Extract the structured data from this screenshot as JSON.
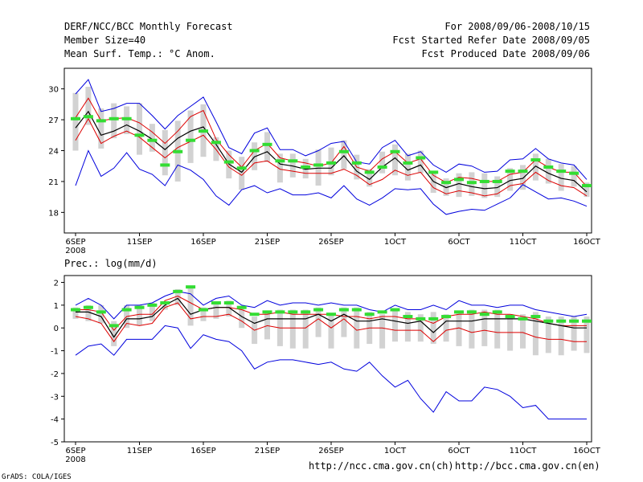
{
  "header": {
    "title": "DERF/NCC/BCC Monthly Forecast",
    "member_size": "Member Size=40",
    "variable": "Mean Surf. Temp.: °C Anom.",
    "period": "For 2008/09/06-2008/10/15",
    "started": "Fcst Started Refer Date 2008/09/05",
    "produced": "Fcst Produced Date 2008/09/06"
  },
  "colors": {
    "max_min": "#0000dd",
    "spread": "#dd0000",
    "mean": "#000000",
    "box": "#d2d2d2",
    "median": "#33dd33"
  },
  "footer": {
    "ncc_url": "http://ncc.cma.gov.cn(ch)",
    "bcc_url": "http://bcc.cma.gov.cn(en)",
    "grads": "GrADS: COLA/IGES"
  },
  "chart_data": [
    {
      "type": "line",
      "title": "Mean Surf. Temp.: °C Anom.",
      "xlabel": "",
      "ylabel": "",
      "ylim": [
        16,
        32
      ],
      "yticks": [
        18,
        21,
        24,
        27,
        30
      ],
      "xticks": [
        {
          "day": 0,
          "label": "6SEP",
          "sub": "2008"
        },
        {
          "day": 5,
          "label": "11SEP"
        },
        {
          "day": 10,
          "label": "16SEP"
        },
        {
          "day": 15,
          "label": "21SEP"
        },
        {
          "day": 20,
          "label": "26SEP"
        },
        {
          "day": 25,
          "label": "1OCT"
        },
        {
          "day": 30,
          "label": "6OCT"
        },
        {
          "day": 35,
          "label": "11OCT"
        },
        {
          "day": 40,
          "label": "16OCT"
        }
      ],
      "series": [
        {
          "name": "max",
          "color": "#0000dd",
          "values": [
            29.5,
            30.9,
            27.8,
            28.1,
            28.6,
            28.6,
            27.4,
            26.1,
            27.4,
            28.3,
            29.2,
            26.8,
            24.3,
            23.7,
            25.7,
            26.2,
            24.1,
            24.1,
            23.5,
            24.0,
            24.7,
            24.9,
            22.9,
            22.7,
            24.3,
            25.0,
            23.5,
            23.9,
            22.6,
            21.9,
            22.7,
            22.5,
            21.9,
            22.0,
            23.1,
            23.2,
            24.2,
            23.2,
            22.8,
            22.6,
            21.2
          ]
        },
        {
          "name": "upper",
          "color": "#dd0000",
          "values": [
            27.2,
            29.1,
            26.9,
            27.1,
            27.2,
            26.7,
            25.8,
            24.7,
            25.9,
            27.3,
            27.9,
            25.1,
            23.6,
            22.4,
            24.0,
            24.7,
            23.3,
            23.0,
            22.8,
            22.5,
            22.8,
            24.4,
            22.4,
            22.0,
            23.2,
            23.9,
            22.8,
            23.2,
            21.6,
            20.9,
            21.4,
            21.3,
            21.0,
            21.0,
            21.7,
            21.9,
            23.1,
            22.4,
            21.9,
            21.9,
            20.5
          ]
        },
        {
          "name": "mean",
          "color": "#000000",
          "values": [
            26.2,
            27.8,
            25.5,
            25.9,
            26.5,
            25.9,
            25.1,
            24.1,
            25.2,
            25.9,
            26.3,
            24.6,
            22.7,
            21.9,
            23.4,
            23.9,
            22.7,
            22.5,
            22.2,
            22.3,
            22.3,
            23.5,
            22.0,
            21.2,
            22.4,
            23.3,
            22.1,
            22.6,
            21.0,
            20.4,
            20.8,
            20.5,
            20.3,
            20.4,
            21.1,
            21.3,
            22.5,
            21.8,
            21.3,
            21.1,
            20.0
          ]
        },
        {
          "name": "lower",
          "color": "#dd0000",
          "values": [
            25.0,
            27.1,
            24.7,
            25.4,
            25.9,
            25.3,
            24.3,
            23.3,
            24.3,
            24.9,
            25.5,
            24.1,
            22.4,
            21.6,
            22.8,
            23.0,
            22.2,
            22.0,
            21.8,
            21.8,
            21.8,
            22.2,
            21.6,
            20.7,
            21.2,
            22.1,
            21.6,
            21.9,
            20.4,
            19.8,
            20.1,
            19.9,
            19.6,
            19.8,
            20.6,
            20.8,
            21.9,
            21.1,
            20.6,
            20.4,
            19.6
          ]
        },
        {
          "name": "min",
          "color": "#0000dd",
          "values": [
            20.6,
            24.0,
            21.5,
            22.3,
            23.8,
            22.2,
            21.7,
            20.6,
            22.6,
            22.1,
            21.2,
            19.6,
            18.7,
            20.2,
            20.6,
            19.9,
            20.3,
            19.7,
            19.7,
            19.9,
            19.4,
            20.6,
            19.3,
            18.7,
            19.4,
            20.3,
            20.2,
            20.3,
            18.8,
            17.8,
            18.1,
            18.3,
            18.2,
            18.8,
            19.4,
            20.7,
            20.0,
            19.3,
            19.4,
            19.1,
            18.6
          ]
        },
        {
          "name": "median",
          "color": "#33dd33",
          "values": [
            27.1,
            27.3,
            26.9,
            27.1,
            27.1,
            25.5,
            25.0,
            22.6,
            23.9,
            25.0,
            25.9,
            24.8,
            22.9,
            22.3,
            24.0,
            24.6,
            23.0,
            23.0,
            22.4,
            22.6,
            22.8,
            23.9,
            22.8,
            21.9,
            22.4,
            23.9,
            22.8,
            23.3,
            21.9,
            20.9,
            21.2,
            20.9,
            21.0,
            21.0,
            22.0,
            22.0,
            23.1,
            22.4,
            22.0,
            21.8,
            20.6
          ]
        },
        {
          "name": "box_high",
          "color": "#d2d2d2",
          "values": [
            29.6,
            30.2,
            28.1,
            28.6,
            28.3,
            28.6,
            26.6,
            26.0,
            26.9,
            27.9,
            28.5,
            25.3,
            24.0,
            23.4,
            24.8,
            25.8,
            23.7,
            23.7,
            23.2,
            24.1,
            24.3,
            25.0,
            23.6,
            22.2,
            23.9,
            24.6,
            23.7,
            24.0,
            21.9,
            21.3,
            21.8,
            21.9,
            21.8,
            21.5,
            22.3,
            22.6,
            23.7,
            23.2,
            22.7,
            22.5,
            20.9
          ]
        },
        {
          "name": "box_low",
          "color": "#d2d2d2",
          "values": [
            24.0,
            26.5,
            24.2,
            25.2,
            25.6,
            23.6,
            23.9,
            21.6,
            21.0,
            22.8,
            23.4,
            23.0,
            21.3,
            20.2,
            22.1,
            22.9,
            20.9,
            21.4,
            21.3,
            20.6,
            21.6,
            22.2,
            21.2,
            20.5,
            21.8,
            21.6,
            21.1,
            21.8,
            19.9,
            19.6,
            19.5,
            19.6,
            19.4,
            19.5,
            20.1,
            20.2,
            21.1,
            20.8,
            20.1,
            20.5,
            19.5
          ]
        }
      ]
    },
    {
      "type": "line",
      "title": "Prec.: log(mm/d)",
      "xlabel": "",
      "ylabel": "",
      "ylim": [
        -5,
        2.3
      ],
      "yticks": [
        -5,
        -4,
        -3,
        -2,
        -1,
        0,
        1,
        2
      ],
      "xticks": [
        {
          "day": 0,
          "label": "6SEP",
          "sub": "2008"
        },
        {
          "day": 5,
          "label": "11SEP"
        },
        {
          "day": 10,
          "label": "16SEP"
        },
        {
          "day": 15,
          "label": "21SEP"
        },
        {
          "day": 20,
          "label": "26SEP"
        },
        {
          "day": 25,
          "label": "1OCT"
        },
        {
          "day": 30,
          "label": "6OCT"
        },
        {
          "day": 35,
          "label": "11OCT"
        },
        {
          "day": 40,
          "label": "16OCT"
        }
      ],
      "series": [
        {
          "name": "max",
          "color": "#0000dd",
          "values": [
            1.0,
            1.3,
            1.0,
            0.4,
            1.0,
            1.0,
            1.1,
            1.4,
            1.6,
            1.5,
            1.0,
            1.3,
            1.4,
            1.0,
            0.9,
            1.2,
            1.0,
            1.1,
            1.1,
            1.0,
            1.1,
            1.0,
            1.0,
            0.8,
            0.7,
            1.0,
            0.8,
            0.8,
            1.0,
            0.8,
            1.2,
            1.0,
            1.0,
            0.9,
            1.0,
            1.0,
            0.8,
            0.7,
            0.6,
            0.5,
            0.6
          ]
        },
        {
          "name": "upper",
          "color": "#dd0000",
          "values": [
            0.8,
            0.8,
            0.7,
            -0.1,
            0.5,
            0.6,
            0.6,
            1.2,
            1.4,
            1.1,
            0.8,
            0.9,
            0.9,
            0.8,
            0.6,
            0.6,
            0.7,
            0.6,
            0.6,
            0.6,
            0.6,
            0.5,
            0.5,
            0.4,
            0.5,
            0.5,
            0.4,
            0.4,
            0.2,
            0.5,
            0.6,
            0.6,
            0.7,
            0.6,
            0.6,
            0.5,
            0.4,
            0.2,
            0.1,
            0.1,
            0.1
          ]
        },
        {
          "name": "mean",
          "color": "#000000",
          "values": [
            0.7,
            0.7,
            0.5,
            -0.4,
            0.4,
            0.4,
            0.5,
            1.0,
            1.3,
            0.6,
            0.8,
            0.9,
            0.9,
            0.5,
            0.2,
            0.4,
            0.4,
            0.4,
            0.4,
            0.6,
            0.3,
            0.6,
            0.3,
            0.3,
            0.4,
            0.3,
            0.2,
            0.3,
            -0.2,
            0.3,
            0.3,
            0.3,
            0.4,
            0.4,
            0.4,
            0.4,
            0.3,
            0.2,
            0.1,
            0.0,
            0.0
          ]
        },
        {
          "name": "lower",
          "color": "#dd0000",
          "values": [
            0.5,
            0.4,
            0.2,
            -0.6,
            0.2,
            0.1,
            0.2,
            0.9,
            1.1,
            0.4,
            0.5,
            0.5,
            0.6,
            0.3,
            -0.1,
            0.1,
            0.0,
            0.0,
            0.0,
            0.4,
            0.0,
            0.4,
            -0.1,
            0.0,
            0.0,
            -0.1,
            -0.1,
            -0.1,
            -0.6,
            -0.1,
            0.0,
            -0.2,
            -0.1,
            -0.2,
            -0.2,
            -0.2,
            -0.4,
            -0.5,
            -0.5,
            -0.6,
            -0.6
          ]
        },
        {
          "name": "min",
          "color": "#0000dd",
          "values": [
            -1.2,
            -0.8,
            -0.7,
            -1.2,
            -0.5,
            -0.5,
            -0.5,
            0.1,
            0.0,
            -0.9,
            -0.3,
            -0.5,
            -0.6,
            -1.0,
            -1.8,
            -1.5,
            -1.4,
            -1.4,
            -1.5,
            -1.6,
            -1.5,
            -1.8,
            -1.9,
            -1.5,
            -2.1,
            -2.6,
            -2.3,
            -3.1,
            -3.7,
            -2.8,
            -3.2,
            -3.2,
            -2.6,
            -2.7,
            -3.0,
            -3.5,
            -3.4,
            -4.0,
            -4.0,
            -4.0,
            -4.0
          ]
        },
        {
          "name": "median",
          "color": "#33dd33",
          "values": [
            0.8,
            0.9,
            0.7,
            0.1,
            0.8,
            0.9,
            1.0,
            1.1,
            1.6,
            1.8,
            0.8,
            1.1,
            1.1,
            0.9,
            0.6,
            0.7,
            0.7,
            0.7,
            0.7,
            0.8,
            0.6,
            0.8,
            0.8,
            0.6,
            0.7,
            0.8,
            0.5,
            0.4,
            0.4,
            0.5,
            0.7,
            0.7,
            0.6,
            0.7,
            0.5,
            0.4,
            0.5,
            0.3,
            0.3,
            0.3,
            0.3
          ]
        },
        {
          "name": "box_high",
          "color": "#d2d2d2",
          "values": [
            0.9,
            1.0,
            1.0,
            0.3,
            1.0,
            1.0,
            1.1,
            1.0,
            1.7,
            1.8,
            0.9,
            1.1,
            1.2,
            0.9,
            0.5,
            0.7,
            0.8,
            0.8,
            0.8,
            0.9,
            0.6,
            0.9,
            0.9,
            0.7,
            0.6,
            0.8,
            0.7,
            0.6,
            0.7,
            0.6,
            0.7,
            0.8,
            0.8,
            0.8,
            0.6,
            0.6,
            0.7,
            0.5,
            0.5,
            0.5,
            0.5
          ]
        },
        {
          "name": "box_low",
          "color": "#d2d2d2",
          "values": [
            0.4,
            0.3,
            0.2,
            -0.8,
            0.0,
            0.1,
            0.3,
            0.8,
            1.0,
            0.1,
            0.3,
            0.4,
            0.5,
            0.0,
            -0.7,
            -0.5,
            -0.8,
            -0.9,
            -0.9,
            -0.4,
            -0.9,
            -0.4,
            -0.9,
            -0.7,
            -0.9,
            -0.6,
            -0.6,
            -0.6,
            -0.7,
            -0.6,
            -0.8,
            -0.9,
            -0.8,
            -0.9,
            -1.0,
            -0.9,
            -1.2,
            -1.1,
            -1.2,
            -1.0,
            -1.1
          ]
        }
      ]
    }
  ]
}
